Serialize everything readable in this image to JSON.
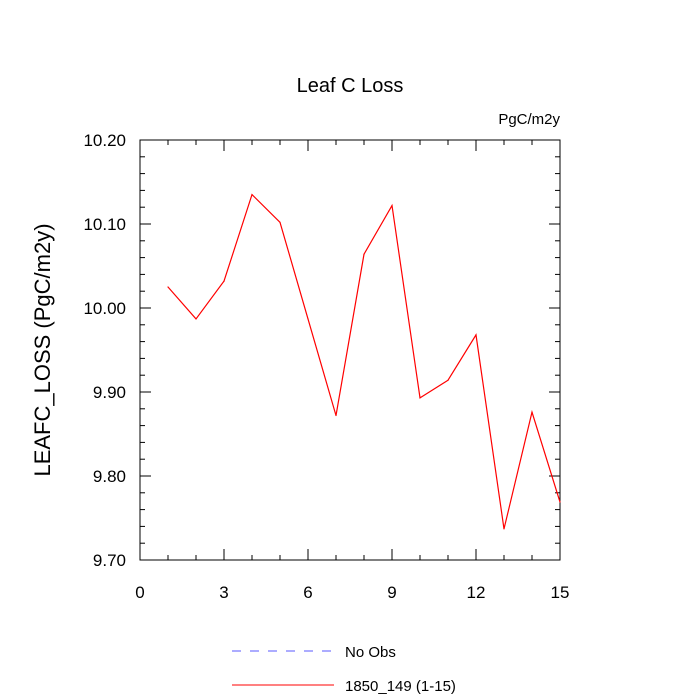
{
  "chart_data": {
    "type": "line",
    "title": "Leaf C Loss",
    "units_label": "PgC/m2y",
    "ylabel": "LEAFC_LOSS  (PgC/m2y)",
    "xlabel": "",
    "xlim": [
      0,
      15
    ],
    "ylim": [
      9.7,
      10.2
    ],
    "x_ticks": [
      0,
      3,
      6,
      9,
      12,
      15
    ],
    "x_tick_labels": [
      "0",
      "3",
      "6",
      "9",
      "12",
      "15"
    ],
    "y_ticks": [
      9.7,
      9.8,
      9.9,
      10.0,
      10.1,
      10.2
    ],
    "y_tick_labels": [
      "9.70",
      "9.80",
      "9.90",
      "10.00",
      "10.10",
      "10.20"
    ],
    "grid": false,
    "legend_position": "bottom",
    "series": [
      {
        "name": "1850_149 (1-15)",
        "color": "#ff0000",
        "style": "solid",
        "x": [
          1,
          2,
          3,
          4,
          5,
          6,
          7,
          8,
          9,
          10,
          11,
          12,
          13,
          14,
          15
        ],
        "values": [
          10.025,
          9.987,
          10.032,
          10.135,
          10.102,
          9.987,
          9.872,
          10.064,
          10.122,
          9.893,
          9.914,
          9.968,
          9.737,
          9.876,
          9.769
        ]
      }
    ],
    "legend": [
      {
        "label": "No Obs",
        "color": "#5a5aff",
        "style": "dashed"
      },
      {
        "label": "1850_149 (1-15)",
        "color": "#ff0000",
        "style": "solid"
      }
    ]
  }
}
